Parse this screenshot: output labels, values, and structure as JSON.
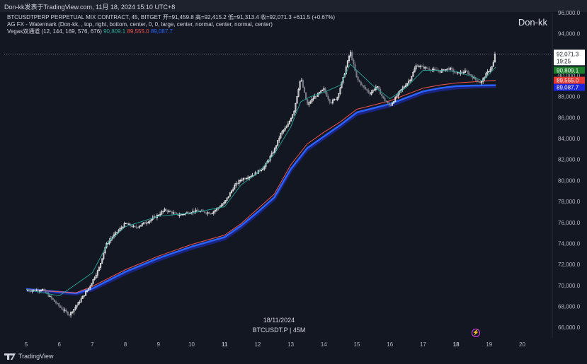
{
  "header": {
    "attribution": "Don-kk发表于TradingView.com,  11月 18, 2024 15:10 UTC+8"
  },
  "legend": {
    "line1": "BTCUSDTPERP PERPETUAL MIX CONTRACT, 45, BITGET  开=91,459.8  高=92,415.2  低=91,313.4  收=92,071.3  +611.5 (+0.67%)",
    "line2": "AG FX - Watermark (Don-kk, , top, right, bottom, center, 0, 0, large, center, normal, center, normal, center)",
    "line3_name": "Vegas双通道 (12, 144, 169, 576, 676)",
    "line3_v1": "90,809.1",
    "line3_v2": "89,555.0",
    "line3_v3": "89,087.7"
  },
  "watermark": {
    "top_right": "Don-kk",
    "center_date": "18/11/2024",
    "center_symbol": "BTCUSDT.P | 45M"
  },
  "footer": {
    "brand": "TradingView"
  },
  "icons": {
    "replay": "lightning-icon",
    "logo": "tradingview-logo-icon"
  },
  "colors": {
    "background": "#131722",
    "up": "#ffffff",
    "down": "#787b86",
    "ema12": "#26a69a",
    "ema144": "#ef5350",
    "ema169": "#2962ff",
    "ema576": "#1a237e"
  },
  "chart_data": {
    "type": "candlestick",
    "timeframe": "45",
    "ylim": [
      65000,
      96000
    ],
    "y_ticks": [
      "96,000.0",
      "94,000.0",
      "92,000.0",
      "90,000.0",
      "88,000.0",
      "86,000.0",
      "84,000.0",
      "82,000.0",
      "80,000.0",
      "78,000.0",
      "76,000.0",
      "74,000.0",
      "72,000.0",
      "70,000.0",
      "68,000.0",
      "66,000.0"
    ],
    "x_ticks": [
      "5",
      "6",
      "7",
      "8",
      "9",
      "10",
      "11",
      "12",
      "13",
      "14",
      "15",
      "16",
      "17",
      "18",
      "19",
      "20"
    ],
    "bold_x_ticks": [
      "11",
      "18"
    ],
    "last_price": {
      "value": "92,071.3",
      "countdown": "19:25"
    },
    "price_labels": [
      {
        "value": "90,809.1",
        "color": "#1b7d2a",
        "text": "90,809.1"
      },
      {
        "value": "89,555.0",
        "color": "#e53935",
        "text": "89,555.0"
      },
      {
        "value": "89,087.7",
        "color": "#1c26d9",
        "text": "89,087.7"
      }
    ],
    "close_path": [
      [
        0,
        69500
      ],
      [
        0.5,
        69600
      ],
      [
        1.0,
        68000
      ],
      [
        1.3,
        67200
      ],
      [
        1.6,
        68400
      ],
      [
        1.9,
        69800
      ],
      [
        2.2,
        71600
      ],
      [
        2.4,
        73800
      ],
      [
        2.6,
        74600
      ],
      [
        3.0,
        75900
      ],
      [
        3.3,
        75500
      ],
      [
        3.8,
        76300
      ],
      [
        4.2,
        77200
      ],
      [
        4.6,
        76700
      ],
      [
        5.1,
        77100
      ],
      [
        5.6,
        76900
      ],
      [
        6.0,
        77900
      ],
      [
        6.3,
        79500
      ],
      [
        6.5,
        80100
      ],
      [
        6.9,
        80600
      ],
      [
        7.2,
        81300
      ],
      [
        7.5,
        82900
      ],
      [
        7.7,
        84500
      ],
      [
        7.9,
        85200
      ],
      [
        8.1,
        86700
      ],
      [
        8.3,
        89800
      ],
      [
        8.5,
        87200
      ],
      [
        8.7,
        87900
      ],
      [
        9.0,
        88700
      ],
      [
        9.2,
        87400
      ],
      [
        9.4,
        87900
      ],
      [
        9.6,
        89900
      ],
      [
        9.8,
        92300
      ],
      [
        10.0,
        89700
      ],
      [
        10.2,
        88900
      ],
      [
        10.4,
        88300
      ],
      [
        10.6,
        89000
      ],
      [
        10.8,
        87800
      ],
      [
        11.0,
        87100
      ],
      [
        11.3,
        88500
      ],
      [
        11.6,
        89600
      ],
      [
        11.8,
        91000
      ],
      [
        12.1,
        90700
      ],
      [
        12.5,
        90400
      ],
      [
        12.8,
        90700
      ],
      [
        13.0,
        90200
      ],
      [
        13.3,
        90400
      ],
      [
        13.6,
        89600
      ],
      [
        13.75,
        89300
      ],
      [
        13.9,
        90100
      ],
      [
        14.1,
        90900
      ],
      [
        14.2,
        92071.3
      ]
    ],
    "ema12_path": [
      [
        0,
        69600
      ],
      [
        1.0,
        69000
      ],
      [
        2.0,
        71200
      ],
      [
        2.5,
        74200
      ],
      [
        3.0,
        75600
      ],
      [
        4.0,
        76600
      ],
      [
        5.0,
        76900
      ],
      [
        6.0,
        77500
      ],
      [
        6.5,
        79600
      ],
      [
        7.0,
        80700
      ],
      [
        7.5,
        82500
      ],
      [
        8.0,
        85100
      ],
      [
        8.3,
        87500
      ],
      [
        8.6,
        88000
      ],
      [
        9.0,
        88400
      ],
      [
        9.5,
        89100
      ],
      [
        9.8,
        91100
      ],
      [
        10.1,
        90200
      ],
      [
        10.5,
        89000
      ],
      [
        11.0,
        87800
      ],
      [
        11.5,
        88900
      ],
      [
        12.0,
        90500
      ],
      [
        12.5,
        90500
      ],
      [
        13.0,
        90400
      ],
      [
        13.5,
        89900
      ],
      [
        13.8,
        89500
      ],
      [
        14.2,
        90809.1
      ]
    ],
    "ema144_path": [
      [
        0,
        69600
      ],
      [
        1.5,
        69300
      ],
      [
        2.0,
        69900
      ],
      [
        3.0,
        71500
      ],
      [
        4.0,
        72800
      ],
      [
        5.0,
        73900
      ],
      [
        6.0,
        74800
      ],
      [
        6.5,
        75900
      ],
      [
        7.0,
        77300
      ],
      [
        7.5,
        78700
      ],
      [
        8.0,
        81500
      ],
      [
        8.5,
        83500
      ],
      [
        9.0,
        84600
      ],
      [
        9.5,
        85600
      ],
      [
        10.0,
        86800
      ],
      [
        10.5,
        87200
      ],
      [
        11.0,
        87600
      ],
      [
        11.5,
        88200
      ],
      [
        12.0,
        88800
      ],
      [
        12.5,
        89100
      ],
      [
        13.0,
        89300
      ],
      [
        13.5,
        89400
      ],
      [
        14.2,
        89555
      ]
    ],
    "ema169_path": [
      [
        0,
        69650
      ],
      [
        1.5,
        69250
      ],
      [
        2.0,
        69700
      ],
      [
        3.0,
        71300
      ],
      [
        4.0,
        72600
      ],
      [
        5.0,
        73700
      ],
      [
        6.0,
        74600
      ],
      [
        6.5,
        75700
      ],
      [
        7.0,
        77000
      ],
      [
        7.5,
        78400
      ],
      [
        8.0,
        81100
      ],
      [
        8.5,
        83100
      ],
      [
        9.0,
        84200
      ],
      [
        9.5,
        85300
      ],
      [
        10.0,
        86500
      ],
      [
        10.5,
        86900
      ],
      [
        11.0,
        87300
      ],
      [
        11.5,
        87900
      ],
      [
        12.0,
        88500
      ],
      [
        12.5,
        88800
      ],
      [
        13.0,
        89000
      ],
      [
        13.5,
        89050
      ],
      [
        14.2,
        89087.7
      ]
    ],
    "ema576_path": [
      [
        0,
        69550
      ],
      [
        1.5,
        69150
      ],
      [
        2.0,
        69550
      ],
      [
        3.0,
        71100
      ],
      [
        4.0,
        72400
      ],
      [
        5.0,
        73500
      ],
      [
        6.0,
        74400
      ],
      [
        6.5,
        75500
      ],
      [
        7.0,
        76800
      ],
      [
        7.5,
        78200
      ],
      [
        8.0,
        80900
      ],
      [
        8.5,
        82900
      ],
      [
        9.0,
        84000
      ],
      [
        9.5,
        85100
      ],
      [
        10.0,
        86300
      ],
      [
        10.5,
        86700
      ],
      [
        11.0,
        87100
      ],
      [
        11.5,
        87700
      ],
      [
        12.0,
        88300
      ],
      [
        12.5,
        88600
      ],
      [
        13.0,
        88800
      ],
      [
        13.5,
        88900
      ],
      [
        14.2,
        88950
      ]
    ]
  }
}
